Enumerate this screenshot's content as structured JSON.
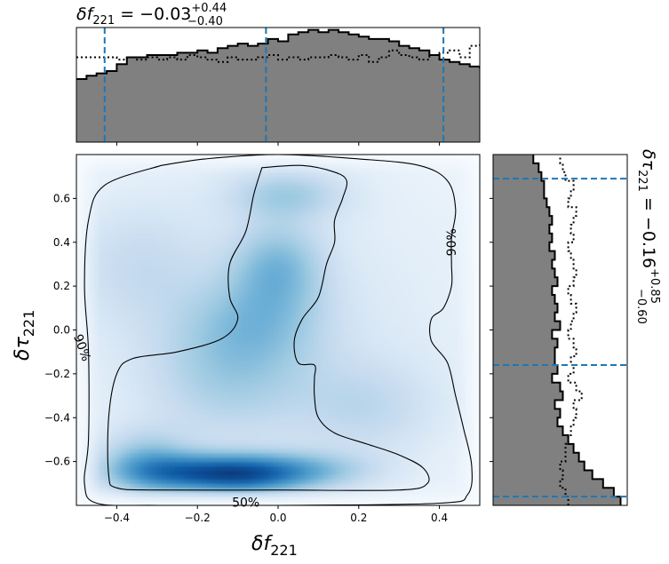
{
  "chart_data": {
    "type": "corner_plot",
    "main": {
      "type": "heatmap",
      "colormap": "Blues",
      "xlabel": "δf",
      "xlabel_sub": "221",
      "ylabel": "δτ",
      "ylabel_sub": "221",
      "xlim": [
        -0.5,
        0.5
      ],
      "ylim": [
        -0.8,
        0.8
      ],
      "xticks": [
        -0.4,
        -0.2,
        0.0,
        0.2,
        0.4
      ],
      "xtick_labels": [
        "−0.4",
        "−0.2",
        "0.0",
        "0.2",
        "0.4"
      ],
      "yticks": [
        -0.6,
        -0.4,
        -0.2,
        0.0,
        0.2,
        0.4,
        0.6
      ],
      "ytick_labels": [
        "−0.6",
        "−0.4",
        "−0.2",
        "0.0",
        "0.2",
        "0.4",
        "0.6"
      ],
      "density_blobs": [
        {
          "x": -0.22,
          "y": -0.65,
          "sx": 0.12,
          "sy": 0.06,
          "w": 1.0
        },
        {
          "x": -0.08,
          "y": -0.66,
          "sx": 0.1,
          "sy": 0.06,
          "w": 0.85
        },
        {
          "x": 0.06,
          "y": -0.64,
          "sx": 0.12,
          "sy": 0.06,
          "w": 0.6
        },
        {
          "x": -0.33,
          "y": -0.6,
          "sx": 0.08,
          "sy": 0.1,
          "w": 0.55
        },
        {
          "x": 0.0,
          "y": 0.3,
          "sx": 0.08,
          "sy": 0.14,
          "w": 0.55
        },
        {
          "x": 0.02,
          "y": 0.62,
          "sx": 0.1,
          "sy": 0.08,
          "w": 0.45
        },
        {
          "x": -0.12,
          "y": -0.2,
          "sx": 0.14,
          "sy": 0.2,
          "w": 0.4
        },
        {
          "x": -0.05,
          "y": 0.05,
          "sx": 0.12,
          "sy": 0.15,
          "w": 0.4
        },
        {
          "x": 0.22,
          "y": -0.35,
          "sx": 0.12,
          "sy": 0.15,
          "w": 0.28
        },
        {
          "x": -0.35,
          "y": 0.3,
          "sx": 0.12,
          "sy": 0.2,
          "w": 0.25
        },
        {
          "x": 0.0,
          "y": 0.0,
          "sx": 0.45,
          "sy": 0.7,
          "w": 0.2
        }
      ],
      "contours": [
        {
          "level": "90%",
          "points": [
            [
              -0.29,
              0.75
            ],
            [
              -0.18,
              0.78
            ],
            [
              0.0,
              0.8
            ],
            [
              0.2,
              0.78
            ],
            [
              0.35,
              0.75
            ],
            [
              0.42,
              0.68
            ],
            [
              0.44,
              0.55
            ],
            [
              0.43,
              0.42
            ],
            [
              0.43,
              0.3
            ],
            [
              0.43,
              0.2
            ],
            [
              0.41,
              0.1
            ],
            [
              0.38,
              0.05
            ],
            [
              0.38,
              -0.05
            ],
            [
              0.42,
              -0.15
            ],
            [
              0.44,
              -0.3
            ],
            [
              0.46,
              -0.45
            ],
            [
              0.48,
              -0.62
            ],
            [
              0.47,
              -0.75
            ],
            [
              0.4,
              -0.79
            ],
            [
              0.0,
              -0.8
            ],
            [
              -0.3,
              -0.8
            ],
            [
              -0.45,
              -0.79
            ],
            [
              -0.48,
              -0.7
            ],
            [
              -0.47,
              -0.5
            ],
            [
              -0.47,
              -0.1
            ],
            [
              -0.48,
              0.2
            ],
            [
              -0.47,
              0.5
            ],
            [
              -0.43,
              0.66
            ],
            [
              -0.29,
              0.75
            ]
          ],
          "labels": [
            {
              "x": 0.43,
              "y": 0.4,
              "rot": -90
            },
            {
              "x": -0.485,
              "y": -0.08,
              "rot": 70
            }
          ]
        },
        {
          "level": "50%",
          "points": [
            [
              -0.04,
              0.74
            ],
            [
              0.06,
              0.75
            ],
            [
              0.14,
              0.72
            ],
            [
              0.17,
              0.68
            ],
            [
              0.16,
              0.6
            ],
            [
              0.14,
              0.5
            ],
            [
              0.14,
              0.4
            ],
            [
              0.12,
              0.3
            ],
            [
              0.1,
              0.15
            ],
            [
              0.06,
              0.05
            ],
            [
              0.04,
              -0.05
            ],
            [
              0.05,
              -0.15
            ],
            [
              0.09,
              -0.16
            ],
            [
              0.09,
              -0.22
            ],
            [
              0.09,
              -0.3
            ],
            [
              0.1,
              -0.4
            ],
            [
              0.14,
              -0.47
            ],
            [
              0.22,
              -0.52
            ],
            [
              0.3,
              -0.57
            ],
            [
              0.36,
              -0.63
            ],
            [
              0.37,
              -0.7
            ],
            [
              0.3,
              -0.73
            ],
            [
              0.0,
              -0.73
            ],
            [
              -0.3,
              -0.73
            ],
            [
              -0.4,
              -0.72
            ],
            [
              -0.42,
              -0.66
            ],
            [
              -0.42,
              -0.4
            ],
            [
              -0.4,
              -0.2
            ],
            [
              -0.36,
              -0.13
            ],
            [
              -0.25,
              -0.1
            ],
            [
              -0.14,
              -0.04
            ],
            [
              -0.1,
              0.05
            ],
            [
              -0.12,
              0.15
            ],
            [
              -0.12,
              0.3
            ],
            [
              -0.08,
              0.45
            ],
            [
              -0.06,
              0.62
            ],
            [
              -0.04,
              0.74
            ]
          ],
          "labels": [
            {
              "x": -0.08,
              "y": -0.785,
              "rot": 0
            }
          ]
        }
      ]
    },
    "top_hist": {
      "type": "step-histogram",
      "title": "δf",
      "title_sub": "221",
      "title_value": " = −0.03",
      "title_sup": "+0.44",
      "title_low": "−0.40",
      "quantile_lines_x": [
        -0.43,
        -0.03,
        0.41
      ],
      "bins_start": -0.5,
      "bin_width": 0.025,
      "solid_values": [
        0.55,
        0.58,
        0.6,
        0.62,
        0.68,
        0.74,
        0.74,
        0.76,
        0.76,
        0.76,
        0.78,
        0.78,
        0.8,
        0.78,
        0.82,
        0.84,
        0.86,
        0.84,
        0.86,
        0.9,
        0.88,
        0.94,
        0.96,
        0.98,
        0.96,
        0.98,
        0.96,
        0.94,
        0.92,
        0.9,
        0.9,
        0.88,
        0.84,
        0.82,
        0.8,
        0.76,
        0.72,
        0.7,
        0.68,
        0.66,
        0.65,
        0.62,
        0.58,
        0.54,
        0.5,
        0.46,
        0.44,
        0.4,
        0.36,
        0.32
      ],
      "dotted_values": [
        0.74,
        0.74,
        0.74,
        0.74,
        0.72,
        0.74,
        0.72,
        0.74,
        0.72,
        0.74,
        0.72,
        0.76,
        0.74,
        0.72,
        0.7,
        0.74,
        0.72,
        0.72,
        0.74,
        0.76,
        0.72,
        0.74,
        0.72,
        0.74,
        0.74,
        0.76,
        0.74,
        0.72,
        0.76,
        0.7,
        0.74,
        0.8,
        0.76,
        0.74,
        0.72,
        0.76,
        0.78,
        0.8,
        0.74,
        0.84,
        0.86,
        0.82,
        0.8,
        0.84,
        0.72,
        0.74,
        0.78,
        0.86,
        0.72,
        0.76
      ]
    },
    "right_hist": {
      "type": "step-histogram",
      "orientation": "horizontal",
      "title": "δτ",
      "title_sub": "221",
      "title_value": " = −0.16",
      "title_sup": "+0.85",
      "title_low": "−0.60",
      "quantile_lines_y": [
        -0.76,
        -0.16,
        0.69
      ],
      "bins_start": -0.8,
      "bin_width": 0.04,
      "solid_values": [
        0.95,
        0.9,
        0.82,
        0.74,
        0.68,
        0.64,
        0.6,
        0.56,
        0.52,
        0.48,
        0.5,
        0.46,
        0.52,
        0.5,
        0.44,
        0.48,
        0.46,
        0.46,
        0.48,
        0.44,
        0.5,
        0.46,
        0.48,
        0.46,
        0.44,
        0.48,
        0.46,
        0.44,
        0.46,
        0.42,
        0.44,
        0.42,
        0.44,
        0.42,
        0.4,
        0.38,
        0.38,
        0.36,
        0.34,
        0.3
      ],
      "dotted_values": [
        0.56,
        0.54,
        0.5,
        0.52,
        0.5,
        0.54,
        0.54,
        0.56,
        0.58,
        0.6,
        0.62,
        0.6,
        0.66,
        0.62,
        0.56,
        0.6,
        0.58,
        0.62,
        0.6,
        0.56,
        0.58,
        0.6,
        0.62,
        0.58,
        0.56,
        0.6,
        0.62,
        0.6,
        0.58,
        0.56,
        0.6,
        0.58,
        0.6,
        0.62,
        0.56,
        0.58,
        0.6,
        0.54,
        0.52,
        0.5
      ]
    },
    "colors": {
      "hist_fill": "#808080",
      "quantile_line": "#1f77b4",
      "contour": "#000000"
    }
  }
}
